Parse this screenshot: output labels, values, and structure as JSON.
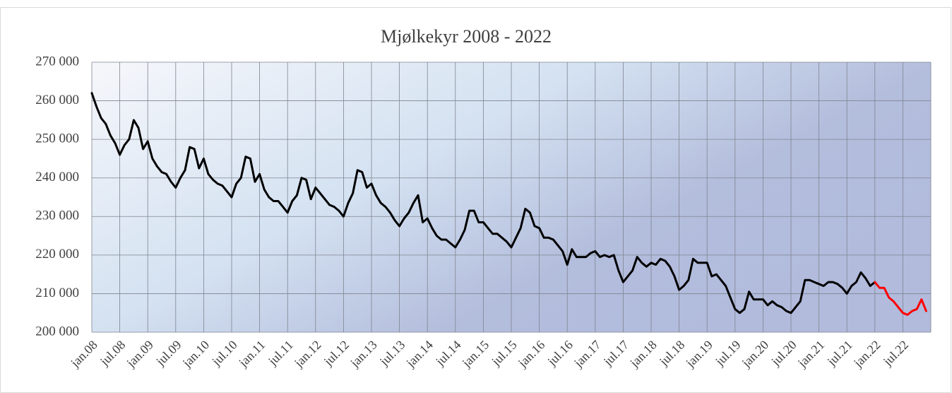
{
  "chart_data": {
    "type": "line",
    "title": "Mjølkekyr 2008 - 2022",
    "categories": [
      "jan.08",
      null,
      null,
      null,
      null,
      null,
      "jul.08",
      null,
      null,
      null,
      null,
      null,
      "jan.09",
      null,
      null,
      null,
      null,
      null,
      "jul.09",
      null,
      null,
      null,
      null,
      null,
      "jan.10",
      null,
      null,
      null,
      null,
      null,
      "jul.10",
      null,
      null,
      null,
      null,
      null,
      "jan.11",
      null,
      null,
      null,
      null,
      null,
      "jul.11",
      null,
      null,
      null,
      null,
      null,
      "jan.12",
      null,
      null,
      null,
      null,
      null,
      "jul.12",
      null,
      null,
      null,
      null,
      null,
      "jan.13",
      null,
      null,
      null,
      null,
      null,
      "jul.13",
      null,
      null,
      null,
      null,
      null,
      "jan.14",
      null,
      null,
      null,
      null,
      null,
      "jul.14",
      null,
      null,
      null,
      null,
      null,
      "jan.15",
      null,
      null,
      null,
      null,
      null,
      "jul.15",
      null,
      null,
      null,
      null,
      null,
      "jan.16",
      null,
      null,
      null,
      null,
      null,
      "jul.16",
      null,
      null,
      null,
      null,
      null,
      "jan.17",
      null,
      null,
      null,
      null,
      null,
      "jul.17",
      null,
      null,
      null,
      null,
      null,
      "jan.18",
      null,
      null,
      null,
      null,
      null,
      "jul.18",
      null,
      null,
      null,
      null,
      null,
      "jan.19",
      null,
      null,
      null,
      null,
      null,
      "jul.19",
      null,
      null,
      null,
      null,
      null,
      "jan.20",
      null,
      null,
      null,
      null,
      null,
      "jul.20",
      null,
      null,
      null,
      null,
      null,
      "jan.21",
      null,
      null,
      null,
      null,
      null,
      "jul.21",
      null,
      null,
      null,
      null,
      null,
      "jan.22",
      null,
      null,
      null,
      null,
      null,
      "jul.22",
      null,
      null,
      null,
      null,
      null
    ],
    "series": [
      {
        "color": "#000000",
        "values": [
          262000,
          258500,
          255500,
          254000,
          251000,
          249000,
          246000,
          248500,
          250000,
          255000,
          253000,
          247500,
          249500,
          245000,
          243000,
          241500,
          241000,
          239000,
          237500,
          240000,
          242000,
          248000,
          247500,
          242500,
          245000,
          241000,
          239500,
          238500,
          238000,
          236500,
          235000,
          238500,
          240000,
          245500,
          245000,
          239000,
          241000,
          237000,
          235000,
          234000,
          234000,
          232500,
          231000,
          234000,
          235500,
          240000,
          239500,
          234500,
          237500,
          236000,
          234500,
          233000,
          232500,
          231500,
          230000,
          233500,
          236000,
          242000,
          241500,
          237500,
          238500,
          235500,
          233500,
          232500,
          231000,
          229000,
          227500,
          229500,
          231000,
          233500,
          235500,
          228500,
          229500,
          227000,
          225000,
          224000,
          224000,
          223000,
          222000,
          224000,
          226500,
          231500,
          231500,
          228500,
          228500,
          227000,
          225500,
          225500,
          224500,
          223500,
          222000,
          224500,
          227000,
          232000,
          231000,
          227500,
          227000,
          224500,
          224500,
          224000,
          222500,
          221000,
          217500,
          221500,
          219500,
          219500,
          219500,
          220500,
          221000,
          219500,
          220000,
          219500,
          220000,
          216000,
          213000,
          214500,
          216000,
          219500,
          218000,
          217000,
          218000,
          217500,
          219000,
          218500,
          217000,
          214500,
          211000,
          212000,
          213500,
          219000,
          218000,
          218000,
          218000,
          214500,
          215000,
          213500,
          212000,
          209000,
          206000,
          205000,
          206000,
          210500,
          208500,
          208500,
          208500,
          207000,
          208000,
          207000,
          206500,
          205500,
          205000,
          206500,
          208000,
          213500,
          213500,
          213000,
          212500,
          212000,
          213000,
          213000,
          212500,
          211500,
          210000,
          212000,
          213000,
          215500,
          214000,
          212000,
          213000,
          null,
          null,
          null,
          null,
          null,
          null,
          null,
          null,
          null,
          null,
          null
        ]
      },
      {
        "color": "#ff0000",
        "values": [
          null,
          null,
          null,
          null,
          null,
          null,
          null,
          null,
          null,
          null,
          null,
          null,
          null,
          null,
          null,
          null,
          null,
          null,
          null,
          null,
          null,
          null,
          null,
          null,
          null,
          null,
          null,
          null,
          null,
          null,
          null,
          null,
          null,
          null,
          null,
          null,
          null,
          null,
          null,
          null,
          null,
          null,
          null,
          null,
          null,
          null,
          null,
          null,
          null,
          null,
          null,
          null,
          null,
          null,
          null,
          null,
          null,
          null,
          null,
          null,
          null,
          null,
          null,
          null,
          null,
          null,
          null,
          null,
          null,
          null,
          null,
          null,
          null,
          null,
          null,
          null,
          null,
          null,
          null,
          null,
          null,
          null,
          null,
          null,
          null,
          null,
          null,
          null,
          null,
          null,
          null,
          null,
          null,
          null,
          null,
          null,
          null,
          null,
          null,
          null,
          null,
          null,
          null,
          null,
          null,
          null,
          null,
          null,
          null,
          null,
          null,
          null,
          null,
          null,
          null,
          null,
          null,
          null,
          null,
          null,
          null,
          null,
          null,
          null,
          null,
          null,
          null,
          null,
          null,
          null,
          null,
          null,
          null,
          null,
          null,
          null,
          null,
          null,
          null,
          null,
          null,
          null,
          null,
          null,
          null,
          null,
          null,
          null,
          null,
          null,
          null,
          null,
          null,
          null,
          null,
          null,
          null,
          null,
          null,
          null,
          null,
          null,
          null,
          null,
          null,
          null,
          null,
          null,
          213000,
          211500,
          211500,
          209000,
          208000,
          206500,
          205000,
          204500,
          205500,
          206000,
          208500,
          205500
        ]
      }
    ],
    "ylim": [
      200000,
      270000
    ],
    "yticks": [
      {
        "value": 200000,
        "label": "200 000"
      },
      {
        "value": 210000,
        "label": "210 000"
      },
      {
        "value": 220000,
        "label": "220 000"
      },
      {
        "value": 230000,
        "label": "230 000"
      },
      {
        "value": 240000,
        "label": "240 000"
      },
      {
        "value": 250000,
        "label": "250 000"
      },
      {
        "value": 260000,
        "label": "260 000"
      },
      {
        "value": 270000,
        "label": "270 000"
      }
    ],
    "grid": true
  }
}
